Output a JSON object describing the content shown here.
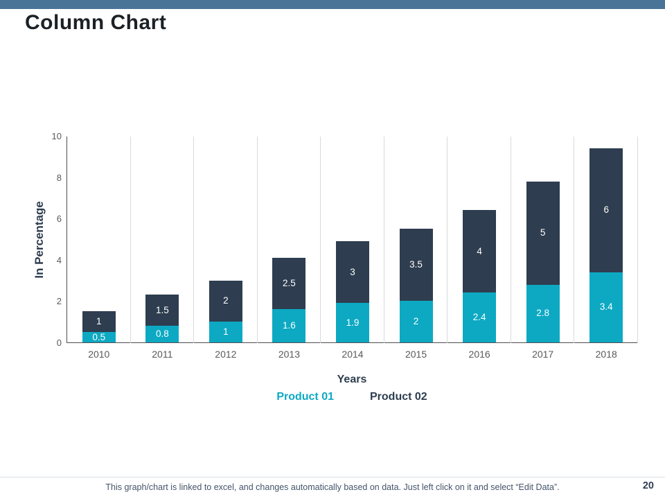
{
  "slide": {
    "title": "Column Chart",
    "page_number": "20",
    "footer_note": "This graph/chart is linked to excel, and changes automatically based on data. Just left click on it and select “Edit Data”.",
    "accent_bar_color": "#4a7398"
  },
  "chart_data": {
    "type": "bar",
    "stacked": true,
    "categories": [
      "2010",
      "2011",
      "2012",
      "2013",
      "2014",
      "2015",
      "2016",
      "2017",
      "2018"
    ],
    "series": [
      {
        "name": "Product 01",
        "color": "#0da9c3",
        "values": [
          0.5,
          0.8,
          1,
          1.6,
          1.9,
          2,
          2.4,
          2.8,
          3.4
        ]
      },
      {
        "name": "Product 02",
        "color": "#2e3d4f",
        "values": [
          1,
          1.5,
          2,
          2.5,
          3,
          3.5,
          4,
          5,
          6
        ]
      }
    ],
    "xlabel": "Years",
    "ylabel": "In Percentage",
    "ylim": [
      0,
      10
    ],
    "yticks": [
      0,
      2,
      4,
      6,
      8,
      10
    ],
    "grid": "vertical",
    "legend_position": "bottom",
    "bar_label_color": "#ffffff",
    "tick_color": "#595959",
    "gridline_color": "#d9d9d9"
  }
}
